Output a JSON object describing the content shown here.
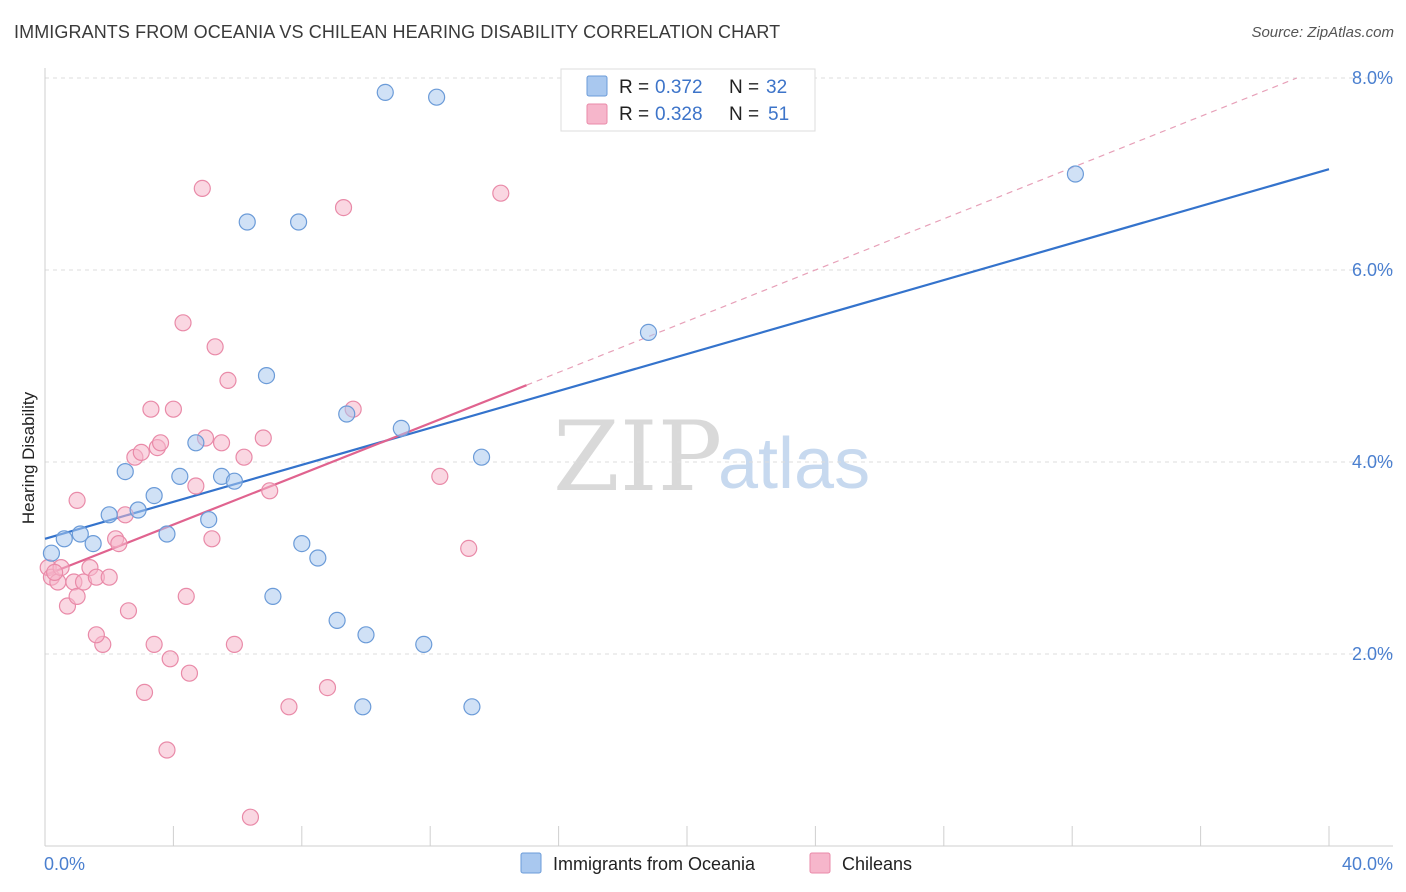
{
  "header": {
    "title": "IMMIGRANTS FROM OCEANIA VS CHILEAN HEARING DISABILITY CORRELATION CHART",
    "source": "Source: ZipAtlas.com"
  },
  "watermark": {
    "zip": "ZIP",
    "atlas": "atlas"
  },
  "colors": {
    "blue_fill": "#a9c8ef",
    "blue_stroke": "#6b9bd8",
    "blue_line": "#3473cc",
    "pink_fill": "#f6b6cb",
    "pink_stroke": "#e98aa8",
    "pink_line": "#e0638f",
    "grid": "#dddddd",
    "axis_text": "#4a7fcf"
  },
  "legend": {
    "rows": [
      {
        "r_label": "R = ",
        "r_value": "0.372",
        "n_label": "N = ",
        "n_value": "32"
      },
      {
        "r_label": "R = ",
        "r_value": "0.328",
        "n_label": "N = ",
        "n_value": "51"
      }
    ]
  },
  "bottom_legend": {
    "items": [
      {
        "label": "Immigrants from Oceania"
      },
      {
        "label": "Chileans"
      }
    ]
  },
  "chart_data": {
    "type": "scatter",
    "title": "IMMIGRANTS FROM OCEANIA VS CHILEAN HEARING DISABILITY CORRELATION CHART",
    "xlabel": "",
    "ylabel": "Hearing Disability",
    "xlim": [
      0,
      40
    ],
    "ylim": [
      0,
      8.3
    ],
    "x_tick_labels": [
      "0.0%",
      "40.0%"
    ],
    "y_ticks": [
      2,
      4,
      6,
      8
    ],
    "y_tick_labels": [
      "2.0%",
      "4.0%",
      "6.0%",
      "8.0%"
    ],
    "grid": true,
    "legend_position": "top-center",
    "series": [
      {
        "name": "Immigrants from Oceania",
        "color": "#a9c8ef",
        "r": 0.372,
        "n": 32,
        "trend": {
          "x": [
            0,
            40
          ],
          "y": [
            3.2,
            7.05
          ],
          "style": "solid"
        },
        "points": [
          [
            0.2,
            3.05
          ],
          [
            0.6,
            3.2
          ],
          [
            1.1,
            3.25
          ],
          [
            1.5,
            3.15
          ],
          [
            2.0,
            3.45
          ],
          [
            2.5,
            3.9
          ],
          [
            2.9,
            3.5
          ],
          [
            3.4,
            3.65
          ],
          [
            3.8,
            3.25
          ],
          [
            4.2,
            3.85
          ],
          [
            4.7,
            4.2
          ],
          [
            5.1,
            3.4
          ],
          [
            5.5,
            3.85
          ],
          [
            5.9,
            3.8
          ],
          [
            6.3,
            6.5
          ],
          [
            6.9,
            4.9
          ],
          [
            7.1,
            2.6
          ],
          [
            7.9,
            6.5
          ],
          [
            8.0,
            3.15
          ],
          [
            8.5,
            3.0
          ],
          [
            9.1,
            2.35
          ],
          [
            9.4,
            4.5
          ],
          [
            10.0,
            2.2
          ],
          [
            10.6,
            7.85
          ],
          [
            11.1,
            4.35
          ],
          [
            9.9,
            1.45
          ],
          [
            11.8,
            2.1
          ],
          [
            12.2,
            7.8
          ],
          [
            13.6,
            4.05
          ],
          [
            13.3,
            1.45
          ],
          [
            18.8,
            5.35
          ],
          [
            32.1,
            7.0
          ]
        ]
      },
      {
        "name": "Chileans",
        "color": "#f6b6cb",
        "r": 0.328,
        "n": 51,
        "trend": {
          "x": [
            0,
            15
          ],
          "y": [
            2.82,
            4.8
          ],
          "style": "solid",
          "extended": {
            "x": [
              15,
              39
            ],
            "y": [
              4.8,
              8.0
            ],
            "style": "dashed"
          }
        },
        "points": [
          [
            0.1,
            2.9
          ],
          [
            0.2,
            2.8
          ],
          [
            0.4,
            2.75
          ],
          [
            0.5,
            2.9
          ],
          [
            0.7,
            2.5
          ],
          [
            0.9,
            2.75
          ],
          [
            1.0,
            2.6
          ],
          [
            1.2,
            2.75
          ],
          [
            1.4,
            2.9
          ],
          [
            1.6,
            2.8
          ],
          [
            1.8,
            2.1
          ],
          [
            2.0,
            2.8
          ],
          [
            2.2,
            3.2
          ],
          [
            2.5,
            3.45
          ],
          [
            2.6,
            2.45
          ],
          [
            2.8,
            4.05
          ],
          [
            3.0,
            4.1
          ],
          [
            3.1,
            1.6
          ],
          [
            3.3,
            4.55
          ],
          [
            3.4,
            2.1
          ],
          [
            3.5,
            4.15
          ],
          [
            3.6,
            4.2
          ],
          [
            3.8,
            1.0
          ],
          [
            3.9,
            1.95
          ],
          [
            4.0,
            4.55
          ],
          [
            4.3,
            5.45
          ],
          [
            4.4,
            2.6
          ],
          [
            4.5,
            1.8
          ],
          [
            4.7,
            3.75
          ],
          [
            4.9,
            6.85
          ],
          [
            5.0,
            4.25
          ],
          [
            5.2,
            3.2
          ],
          [
            5.3,
            5.2
          ],
          [
            5.5,
            4.2
          ],
          [
            5.7,
            4.85
          ],
          [
            5.9,
            2.1
          ],
          [
            6.2,
            4.05
          ],
          [
            6.4,
            0.3
          ],
          [
            6.8,
            4.25
          ],
          [
            7.0,
            3.7
          ],
          [
            7.6,
            1.45
          ],
          [
            8.8,
            1.65
          ],
          [
            9.3,
            6.65
          ],
          [
            9.6,
            4.55
          ],
          [
            12.3,
            3.85
          ],
          [
            13.2,
            3.1
          ],
          [
            14.2,
            6.8
          ],
          [
            1.0,
            3.6
          ],
          [
            1.6,
            2.2
          ],
          [
            2.3,
            3.15
          ],
          [
            0.3,
            2.85
          ]
        ]
      }
    ]
  }
}
